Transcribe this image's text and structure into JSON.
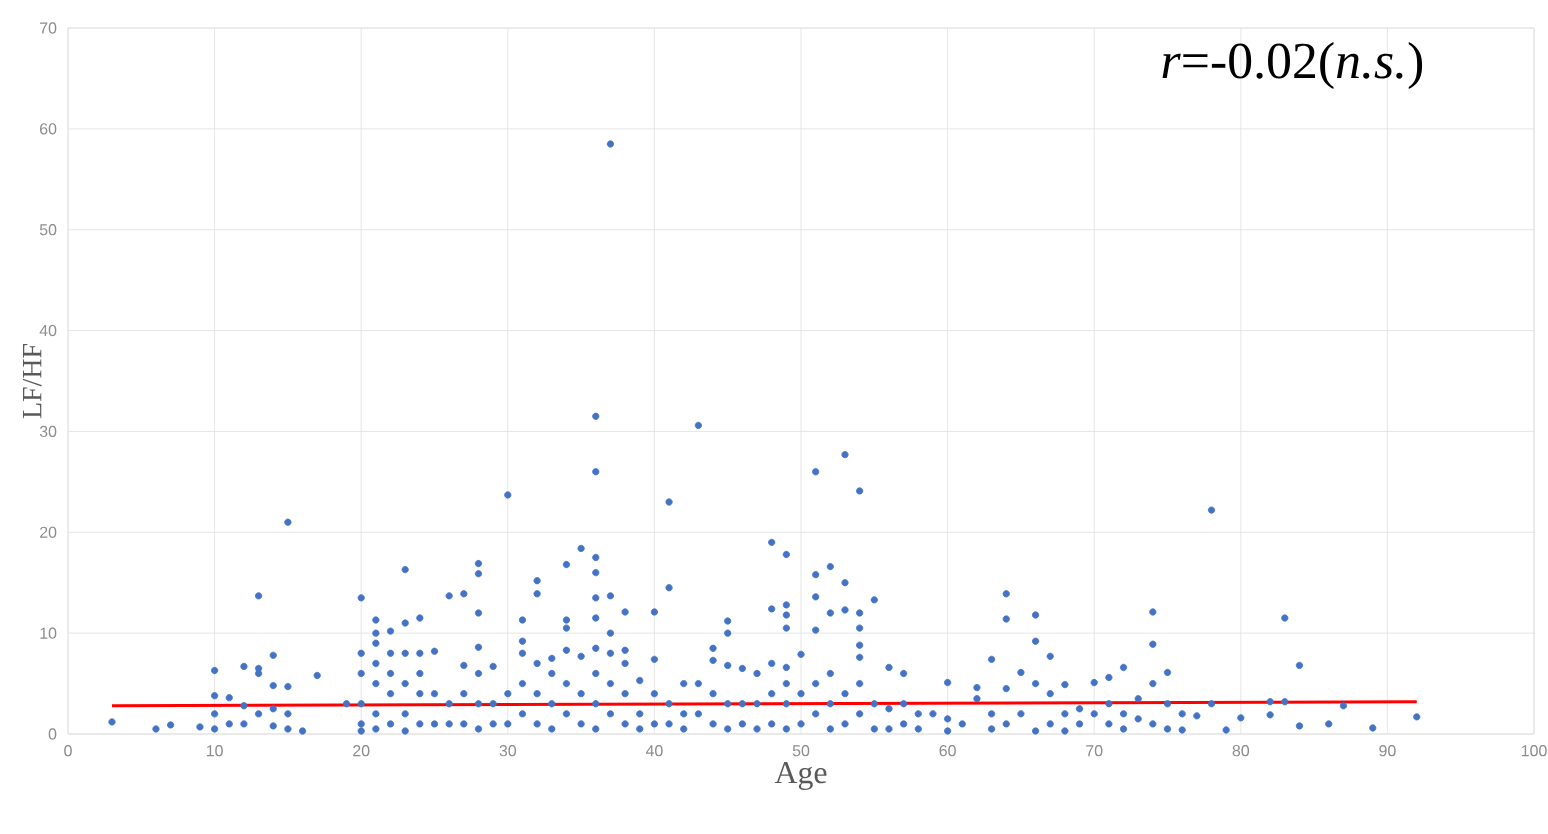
{
  "chart_data": {
    "type": "scatter",
    "xlabel": "Age",
    "ylabel": "LF/HF",
    "annotations": [
      "*r*=-0.02(*n.s.*)"
    ],
    "xlim": [
      0,
      100
    ],
    "ylim": [
      0,
      70
    ],
    "xticks": [
      0,
      10,
      20,
      30,
      40,
      50,
      60,
      70,
      80,
      90,
      100
    ],
    "yticks": [
      0,
      10,
      20,
      30,
      40,
      50,
      60,
      70
    ],
    "grid": true,
    "marker": "circle",
    "series": [
      {
        "color": "#4472c4",
        "x": [
          3,
          6,
          7,
          9,
          10,
          10,
          10,
          10,
          11,
          11,
          12,
          12,
          12,
          13,
          13,
          13,
          13,
          14,
          14,
          14,
          14,
          15,
          15,
          15,
          15,
          16,
          17,
          19,
          20,
          20,
          20,
          20,
          20,
          20,
          21,
          21,
          21,
          21,
          21,
          21,
          21,
          22,
          22,
          22,
          22,
          22,
          23,
          23,
          23,
          23,
          23,
          23,
          24,
          24,
          24,
          24,
          24,
          25,
          25,
          25,
          26,
          26,
          26,
          27,
          27,
          27,
          27,
          28,
          28,
          28,
          28,
          28,
          28,
          28,
          29,
          29,
          29,
          30,
          30,
          30,
          31,
          31,
          31,
          31,
          31,
          32,
          32,
          32,
          32,
          32,
          33,
          33,
          33,
          33,
          34,
          34,
          34,
          34,
          34,
          34,
          35,
          35,
          35,
          35,
          36,
          36,
          36,
          36,
          36,
          36,
          36,
          36,
          36,
          36,
          37,
          37,
          37,
          37,
          37,
          37,
          38,
          38,
          38,
          38,
          38,
          39,
          39,
          39,
          40,
          40,
          40,
          40,
          41,
          41,
          41,
          41,
          42,
          42,
          42,
          43,
          43,
          43,
          44,
          44,
          44,
          44,
          45,
          45,
          45,
          45,
          45,
          46,
          46,
          46,
          47,
          47,
          47,
          48,
          48,
          48,
          48,
          48,
          49,
          49,
          49,
          49,
          49,
          49,
          49,
          49,
          50,
          50,
          50,
          51,
          51,
          51,
          51,
          51,
          51,
          52,
          52,
          52,
          52,
          52,
          53,
          53,
          53,
          53,
          53,
          54,
          54,
          54,
          54,
          54,
          54,
          54,
          55,
          55,
          55,
          56,
          56,
          56,
          57,
          57,
          57,
          58,
          58,
          59,
          60,
          60,
          60,
          61,
          62,
          62,
          63,
          63,
          63,
          64,
          64,
          64,
          64,
          65,
          65,
          66,
          66,
          66,
          66,
          67,
          67,
          67,
          68,
          68,
          68,
          69,
          69,
          70,
          70,
          71,
          71,
          71,
          72,
          72,
          72,
          73,
          73,
          74,
          74,
          74,
          74,
          75,
          75,
          75,
          76,
          76,
          77,
          78,
          78,
          79,
          80,
          82,
          82,
          83,
          83,
          84,
          84,
          86,
          87,
          89,
          92
        ],
        "values": [
          1.2,
          0.5,
          0.9,
          0.7,
          6.3,
          3.8,
          2,
          0.5,
          3.6,
          1,
          6.7,
          2.8,
          1,
          13.7,
          6.5,
          6,
          2,
          7.8,
          4.8,
          2.5,
          0.8,
          21,
          4.7,
          2,
          0.5,
          0.3,
          5.8,
          3,
          13.5,
          8,
          6,
          3,
          1,
          0.3,
          11.3,
          10,
          9,
          7,
          5,
          2,
          0.5,
          10.2,
          8,
          6,
          4,
          1,
          16.3,
          11,
          8,
          5,
          2,
          0.3,
          11.5,
          8,
          6,
          4,
          1,
          8.2,
          4,
          1,
          13.7,
          3,
          1,
          13.9,
          6.8,
          4,
          1,
          16.9,
          15.9,
          12,
          8.6,
          6,
          3,
          0.5,
          6.7,
          3,
          1,
          23.7,
          4,
          1,
          11.3,
          9.2,
          8,
          5,
          2,
          15.2,
          13.9,
          7,
          4,
          1,
          7.5,
          6,
          3,
          0.5,
          16.8,
          11.3,
          10.5,
          8.3,
          5,
          2,
          18.4,
          7.7,
          4,
          1,
          31.5,
          26,
          17.5,
          16,
          13.5,
          11.5,
          8.5,
          6,
          3,
          0.5,
          58.5,
          13.7,
          10,
          8,
          5,
          2,
          12.1,
          8.3,
          7,
          4,
          1,
          5.3,
          2,
          0.5,
          12.1,
          7.4,
          4,
          1,
          23,
          14.5,
          3,
          1,
          5,
          2,
          0.5,
          30.6,
          5,
          2,
          8.5,
          7.3,
          4,
          1,
          11.2,
          10,
          6.8,
          3,
          0.5,
          6.5,
          3,
          1,
          6,
          3,
          0.5,
          19,
          12.4,
          7,
          4,
          1,
          17.8,
          12.8,
          11.8,
          10.5,
          6.6,
          5,
          3,
          0.5,
          7.9,
          4,
          1,
          26,
          15.8,
          13.6,
          10.3,
          5,
          2,
          16.6,
          12,
          6,
          3,
          0.5,
          27.7,
          15,
          12.3,
          4,
          1,
          24.1,
          12,
          10.5,
          8.8,
          7.6,
          5,
          2,
          13.3,
          3,
          0.5,
          6.6,
          2.5,
          0.5,
          6,
          3,
          1,
          2,
          0.5,
          2,
          5.1,
          1.5,
          0.3,
          1,
          4.6,
          3.5,
          7.4,
          2,
          0.5,
          13.9,
          11.4,
          4.5,
          1,
          6.1,
          2,
          11.8,
          9.2,
          5,
          0.3,
          7.7,
          4,
          1,
          4.9,
          2,
          0.3,
          2.5,
          1,
          5.1,
          2,
          5.6,
          3,
          1,
          6.6,
          2,
          0.5,
          3.5,
          1.5,
          12.1,
          8.9,
          5,
          1,
          6.1,
          3,
          0.5,
          2,
          0.4,
          1.8,
          22.2,
          3,
          0.4,
          1.6,
          3.2,
          1.9,
          11.5,
          3.2,
          6.8,
          0.8,
          1,
          2.8,
          0.6,
          1.7
        ]
      },
      {
        "type": "line",
        "color": "#ff0000",
        "marker": "none",
        "x": [
          3,
          92
        ],
        "values": [
          2.8,
          3.2
        ]
      }
    ]
  }
}
